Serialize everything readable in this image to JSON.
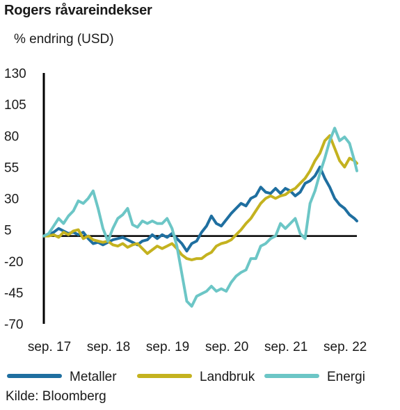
{
  "chart_data": {
    "type": "line",
    "title": "Rogers råvareindekser",
    "subtitle": "% endring (USD)",
    "source": "Kilde: Bloomberg",
    "xlabel": "",
    "ylabel": "",
    "ylim": [
      -70,
      130
    ],
    "yticks": [
      130,
      105,
      80,
      55,
      30,
      5,
      -20,
      -45,
      -70
    ],
    "xtick_labels": [
      "sep. 17",
      "sep. 18",
      "sep. 19",
      "sep. 20",
      "sep. 21",
      "sep. 22"
    ],
    "x_start": "sep. 17",
    "x_end": "sep. 22",
    "zero_line": 0,
    "grid": false,
    "legend_position": "bottom",
    "series": [
      {
        "name": "Metaller",
        "color": "#1f6fa0",
        "points": [
          [
            0,
            0
          ],
          [
            1,
            1
          ],
          [
            2,
            3
          ],
          [
            3,
            6
          ],
          [
            4,
            4
          ],
          [
            5,
            2
          ],
          [
            6,
            3
          ],
          [
            7,
            1
          ],
          [
            8,
            3
          ],
          [
            9,
            -2
          ],
          [
            10,
            -6
          ],
          [
            11,
            -5
          ],
          [
            12,
            -7
          ],
          [
            13,
            -5
          ],
          [
            14,
            -3
          ],
          [
            15,
            -2
          ],
          [
            16,
            -1
          ],
          [
            17,
            -3
          ],
          [
            18,
            -5
          ],
          [
            19,
            -7
          ],
          [
            20,
            -4
          ],
          [
            21,
            -3
          ],
          [
            22,
            1
          ],
          [
            23,
            -2
          ],
          [
            24,
            1
          ],
          [
            25,
            -1
          ],
          [
            26,
            2
          ],
          [
            27,
            -2
          ],
          [
            28,
            -6
          ],
          [
            29,
            -12
          ],
          [
            30,
            -6
          ],
          [
            31,
            -4
          ],
          [
            32,
            3
          ],
          [
            33,
            8
          ],
          [
            34,
            16
          ],
          [
            35,
            10
          ],
          [
            36,
            8
          ],
          [
            37,
            13
          ],
          [
            38,
            18
          ],
          [
            39,
            22
          ],
          [
            40,
            26
          ],
          [
            41,
            24
          ],
          [
            42,
            30
          ],
          [
            43,
            32
          ],
          [
            44,
            39
          ],
          [
            45,
            35
          ],
          [
            46,
            34
          ],
          [
            47,
            38
          ],
          [
            48,
            34
          ],
          [
            49,
            38
          ],
          [
            50,
            36
          ],
          [
            51,
            32
          ],
          [
            52,
            35
          ],
          [
            53,
            42
          ],
          [
            54,
            44
          ],
          [
            55,
            48
          ],
          [
            56,
            55
          ],
          [
            57,
            46
          ],
          [
            58,
            39
          ],
          [
            59,
            30
          ],
          [
            60,
            25
          ],
          [
            61,
            22
          ],
          [
            62,
            17
          ],
          [
            63,
            14
          ],
          [
            63.5,
            12
          ]
        ]
      },
      {
        "name": "Landbruk",
        "color": "#c4b21f",
        "points": [
          [
            0,
            0
          ],
          [
            1,
            0
          ],
          [
            2,
            1
          ],
          [
            3,
            -1
          ],
          [
            4,
            3
          ],
          [
            5,
            1
          ],
          [
            6,
            4
          ],
          [
            7,
            5
          ],
          [
            8,
            -2
          ],
          [
            9,
            0
          ],
          [
            10,
            -3
          ],
          [
            11,
            -4
          ],
          [
            12,
            -5
          ],
          [
            13,
            -4
          ],
          [
            14,
            -7
          ],
          [
            15,
            -8
          ],
          [
            16,
            -6
          ],
          [
            17,
            -9
          ],
          [
            18,
            -7
          ],
          [
            19,
            -6
          ],
          [
            20,
            -10
          ],
          [
            21,
            -14
          ],
          [
            22,
            -11
          ],
          [
            23,
            -8
          ],
          [
            24,
            -10
          ],
          [
            25,
            -8
          ],
          [
            26,
            -6
          ],
          [
            27,
            -10
          ],
          [
            28,
            -15
          ],
          [
            29,
            -18
          ],
          [
            30,
            -19
          ],
          [
            31,
            -18
          ],
          [
            32,
            -18
          ],
          [
            33,
            -15
          ],
          [
            34,
            -13
          ],
          [
            35,
            -8
          ],
          [
            36,
            -6
          ],
          [
            37,
            -5
          ],
          [
            38,
            -3
          ],
          [
            39,
            1
          ],
          [
            40,
            5
          ],
          [
            41,
            10
          ],
          [
            42,
            14
          ],
          [
            43,
            20
          ],
          [
            44,
            26
          ],
          [
            45,
            30
          ],
          [
            46,
            32
          ],
          [
            47,
            30
          ],
          [
            48,
            32
          ],
          [
            49,
            33
          ],
          [
            50,
            36
          ],
          [
            51,
            38
          ],
          [
            52,
            42
          ],
          [
            53,
            46
          ],
          [
            54,
            52
          ],
          [
            55,
            60
          ],
          [
            56,
            66
          ],
          [
            57,
            76
          ],
          [
            58,
            80
          ],
          [
            59,
            70
          ],
          [
            60,
            60
          ],
          [
            61,
            55
          ],
          [
            62,
            62
          ],
          [
            63,
            60
          ],
          [
            63.5,
            58
          ]
        ]
      },
      {
        "name": "Energi",
        "color": "#6cc6c6",
        "points": [
          [
            0,
            0
          ],
          [
            1,
            2
          ],
          [
            2,
            8
          ],
          [
            3,
            14
          ],
          [
            4,
            10
          ],
          [
            5,
            16
          ],
          [
            6,
            20
          ],
          [
            7,
            28
          ],
          [
            8,
            26
          ],
          [
            9,
            30
          ],
          [
            10,
            36
          ],
          [
            11,
            22
          ],
          [
            12,
            6
          ],
          [
            13,
            -4
          ],
          [
            14,
            6
          ],
          [
            15,
            14
          ],
          [
            16,
            17
          ],
          [
            17,
            22
          ],
          [
            18,
            9
          ],
          [
            19,
            7
          ],
          [
            20,
            12
          ],
          [
            21,
            10
          ],
          [
            22,
            12
          ],
          [
            23,
            10
          ],
          [
            24,
            10
          ],
          [
            25,
            14
          ],
          [
            26,
            6
          ],
          [
            27,
            -8
          ],
          [
            28,
            -30
          ],
          [
            29,
            -52
          ],
          [
            30,
            -56
          ],
          [
            31,
            -48
          ],
          [
            32,
            -46
          ],
          [
            33,
            -44
          ],
          [
            34,
            -40
          ],
          [
            35,
            -44
          ],
          [
            36,
            -42
          ],
          [
            37,
            -44
          ],
          [
            38,
            -37
          ],
          [
            39,
            -32
          ],
          [
            40,
            -29
          ],
          [
            41,
            -27
          ],
          [
            42,
            -18
          ],
          [
            43,
            -18
          ],
          [
            44,
            -8
          ],
          [
            45,
            -6
          ],
          [
            46,
            -2
          ],
          [
            47,
            0
          ],
          [
            48,
            10
          ],
          [
            49,
            6
          ],
          [
            50,
            10
          ],
          [
            51,
            14
          ],
          [
            52,
            2
          ],
          [
            53,
            -2
          ],
          [
            54,
            26
          ],
          [
            55,
            36
          ],
          [
            56,
            50
          ],
          [
            57,
            62
          ],
          [
            58,
            76
          ],
          [
            59,
            86
          ],
          [
            60,
            76
          ],
          [
            61,
            79
          ],
          [
            62,
            74
          ],
          [
            63,
            60
          ],
          [
            63.5,
            52
          ]
        ]
      }
    ]
  }
}
